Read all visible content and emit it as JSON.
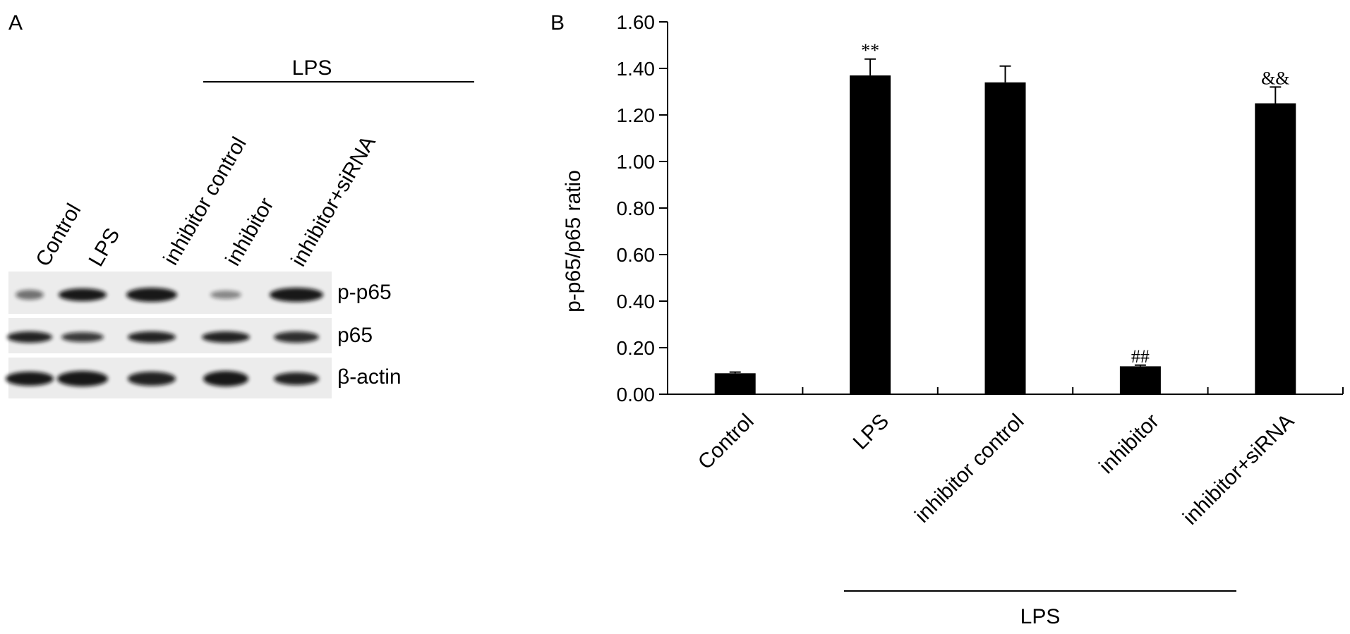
{
  "panel_a": {
    "letter": "A",
    "group_label": "LPS",
    "lanes": [
      "Control",
      "LPS",
      "inhibitor control",
      "inhibitor",
      "inhibitor+siRNA"
    ],
    "blot_labels": [
      "p-p65",
      "p65",
      "β-actin"
    ]
  },
  "panel_b": {
    "letter": "B"
  },
  "chart_data": {
    "type": "bar",
    "categories": [
      "Control",
      "LPS",
      "inhibitor control",
      "inhibitor",
      "inhibitor+siRNA"
    ],
    "values": [
      0.09,
      1.37,
      1.34,
      0.12,
      1.25
    ],
    "errors": [
      0.005,
      0.07,
      0.07,
      0.005,
      0.07
    ],
    "annotations": [
      "",
      "**",
      "",
      "##",
      "&&"
    ],
    "ylabel": "p-p65/p65 ratio",
    "xlabel": "",
    "ylim": [
      0,
      1.6
    ],
    "yticks": [
      "0.00",
      "0.20",
      "0.40",
      "0.60",
      "0.80",
      "1.00",
      "1.20",
      "1.40",
      "1.60"
    ],
    "group_label": "LPS",
    "bar_color": "#000000",
    "grid": false
  }
}
